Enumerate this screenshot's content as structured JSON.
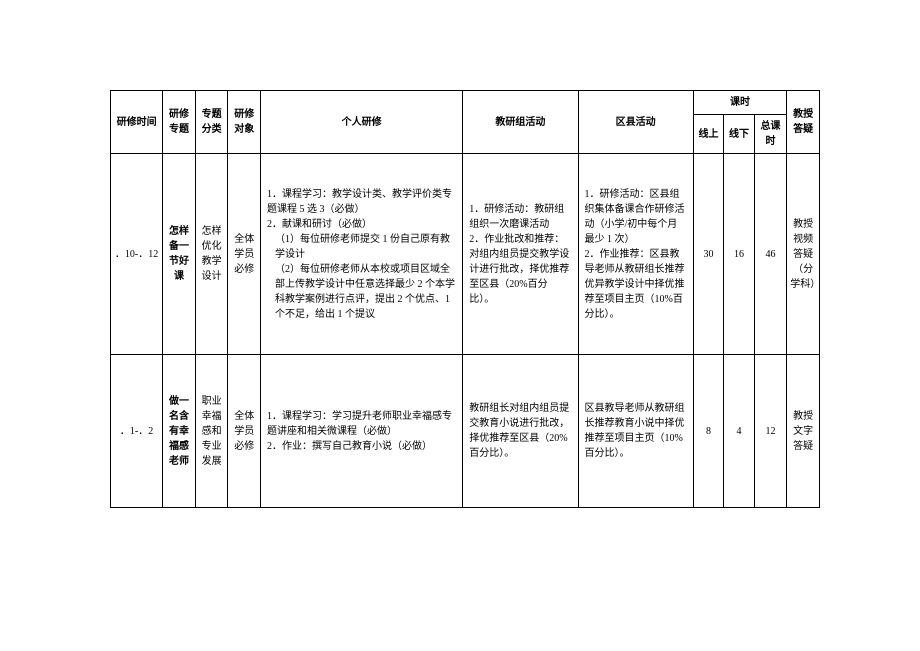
{
  "headers": {
    "time": "研修时间",
    "topic": "研修专题",
    "category": "专题分类",
    "object": "研修对象",
    "personal": "个人研修",
    "group": "教研组活动",
    "district": "区县活动",
    "hours": "课时",
    "online": "线上",
    "offline": "线下",
    "total": "总课时",
    "qa": "教授答疑"
  },
  "rows": [
    {
      "time": "．10-．12",
      "topic": "怎样备一节好课",
      "category": "怎样优化教学设计",
      "object": "全体学员必修",
      "personal_items": {
        "i1": "课程学习：教学设计类、教学评价类专题课程 5 选 3（必做）",
        "i2": "献课和研讨（必做）",
        "i2a": "（1）每位研修老师提交 1 份自己原有教学设计",
        "i2b": "（2）每位研修老师从本校或项目区域全部上传教学设计中任意选择最少 2 个本学科教学案例进行点评，提出 2 个优点、1 个不足，给出 1 个提议"
      },
      "group_items": {
        "i1": "研修活动：教研组组织一次磨课活动",
        "i2": "作业批改和推荐：对组内组员提交教学设计进行批改，择优推荐至区县（20%百分比）。"
      },
      "district_items": {
        "i1": "研修活动：区县组织集体备课合作研修活动（小学/初中每个月最少 1 次）",
        "i2": "作业推荐：区县教导老师从教研组长推荐优异教学设计中择优推荐至项目主页（10%百分比）。"
      },
      "online": "30",
      "offline": "16",
      "total": "46",
      "qa": "教授视频答疑（分学科）"
    },
    {
      "time": "．1-．2",
      "topic": "做一名含有幸福感老师",
      "category": "职业幸福感和专业发展",
      "object": "全体学员必修",
      "personal_items": {
        "i1": "课程学习：学习提升老师职业幸福感专题讲座和相关微课程（必做）",
        "i2": "作业：撰写自己教育小说（必做）"
      },
      "group": "教研组长对组内组员提交教育小说进行批改，择优推荐至区县（20%百分比）。",
      "district": "区县教导老师从教研组长推荐教育小说中择优推荐至项目主页（10%百分比）。",
      "online": "8",
      "offline": "4",
      "total": "12",
      "qa": "教授文字答疑"
    }
  ]
}
